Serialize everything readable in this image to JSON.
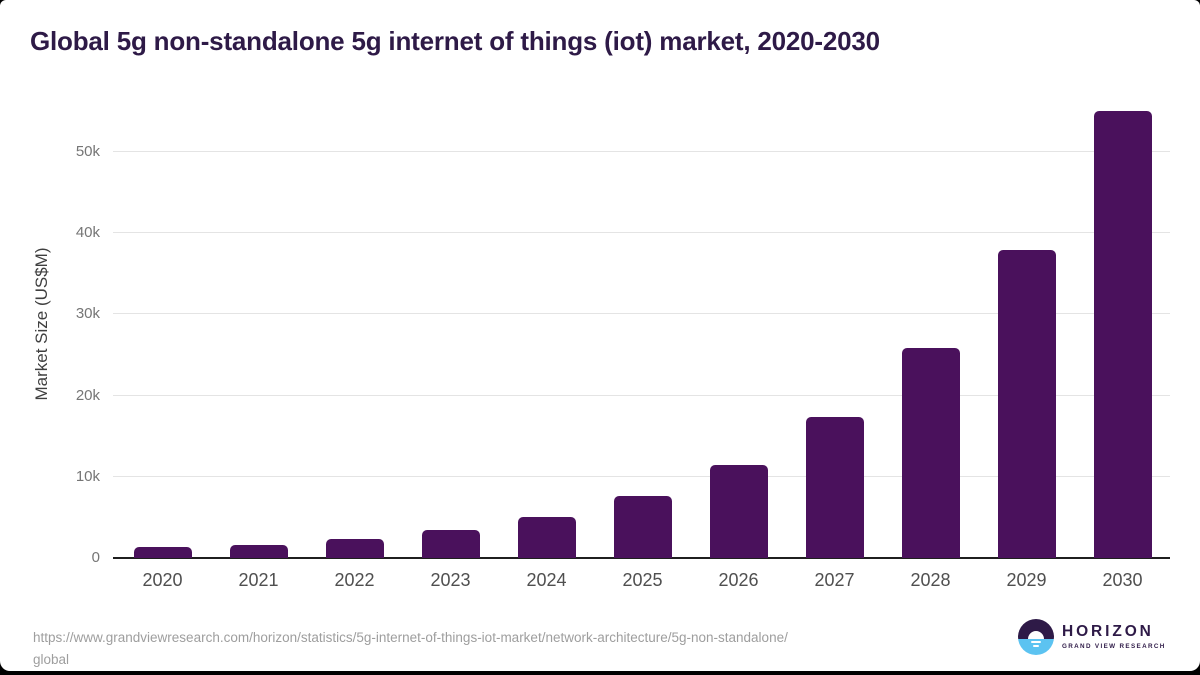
{
  "title": "Global 5g non-standalone 5g internet of things (iot) market, 2020-2030",
  "chart_data": {
    "type": "bar",
    "title": "Global 5g non-standalone 5g internet of things (iot) market, 2020-2030",
    "categories": [
      "2020",
      "2021",
      "2022",
      "2023",
      "2024",
      "2025",
      "2026",
      "2027",
      "2028",
      "2029",
      "2030"
    ],
    "values": [
      1300,
      1650,
      2400,
      3500,
      5100,
      7600,
      11400,
      17350,
      25800,
      37900,
      55050
    ],
    "xlabel": "",
    "ylabel": "Market Size (US$M)",
    "ylim": [
      0,
      57600
    ],
    "yticks": [
      {
        "value": 0,
        "label": "0"
      },
      {
        "value": 10000,
        "label": "10k"
      },
      {
        "value": 20000,
        "label": "20k"
      },
      {
        "value": 30000,
        "label": "30k"
      },
      {
        "value": 40000,
        "label": "40k"
      },
      {
        "value": 50000,
        "label": "50k"
      }
    ],
    "grid": "horizontal",
    "legend": "none",
    "bar_color": "#4a115c"
  },
  "footer": {
    "source_url_line1": "https://www.grandviewresearch.com/horizon/statistics/5g-internet-of-things-iot-market/network-architecture/5g-non-standalone/",
    "source_url_line2": "global",
    "logo": {
      "name": "HORIZON",
      "subtitle": "GRAND VIEW RESEARCH",
      "icon": "horizon-sunset-circle-icon",
      "icon_top_color": "#2e1a47",
      "icon_bottom_color": "#5cc3f1"
    }
  },
  "colors": {
    "bar": "#4a115c",
    "title_text": "#2e1a47",
    "gridline": "#e4e4e4",
    "axis_line": "#1f1f1f",
    "y_tick_label": "#757575",
    "x_tick_label": "#4f4f4f",
    "y_axis_title": "#3f3f3f",
    "source_url": "#9e9e9e",
    "page_background": "#ffffff"
  }
}
